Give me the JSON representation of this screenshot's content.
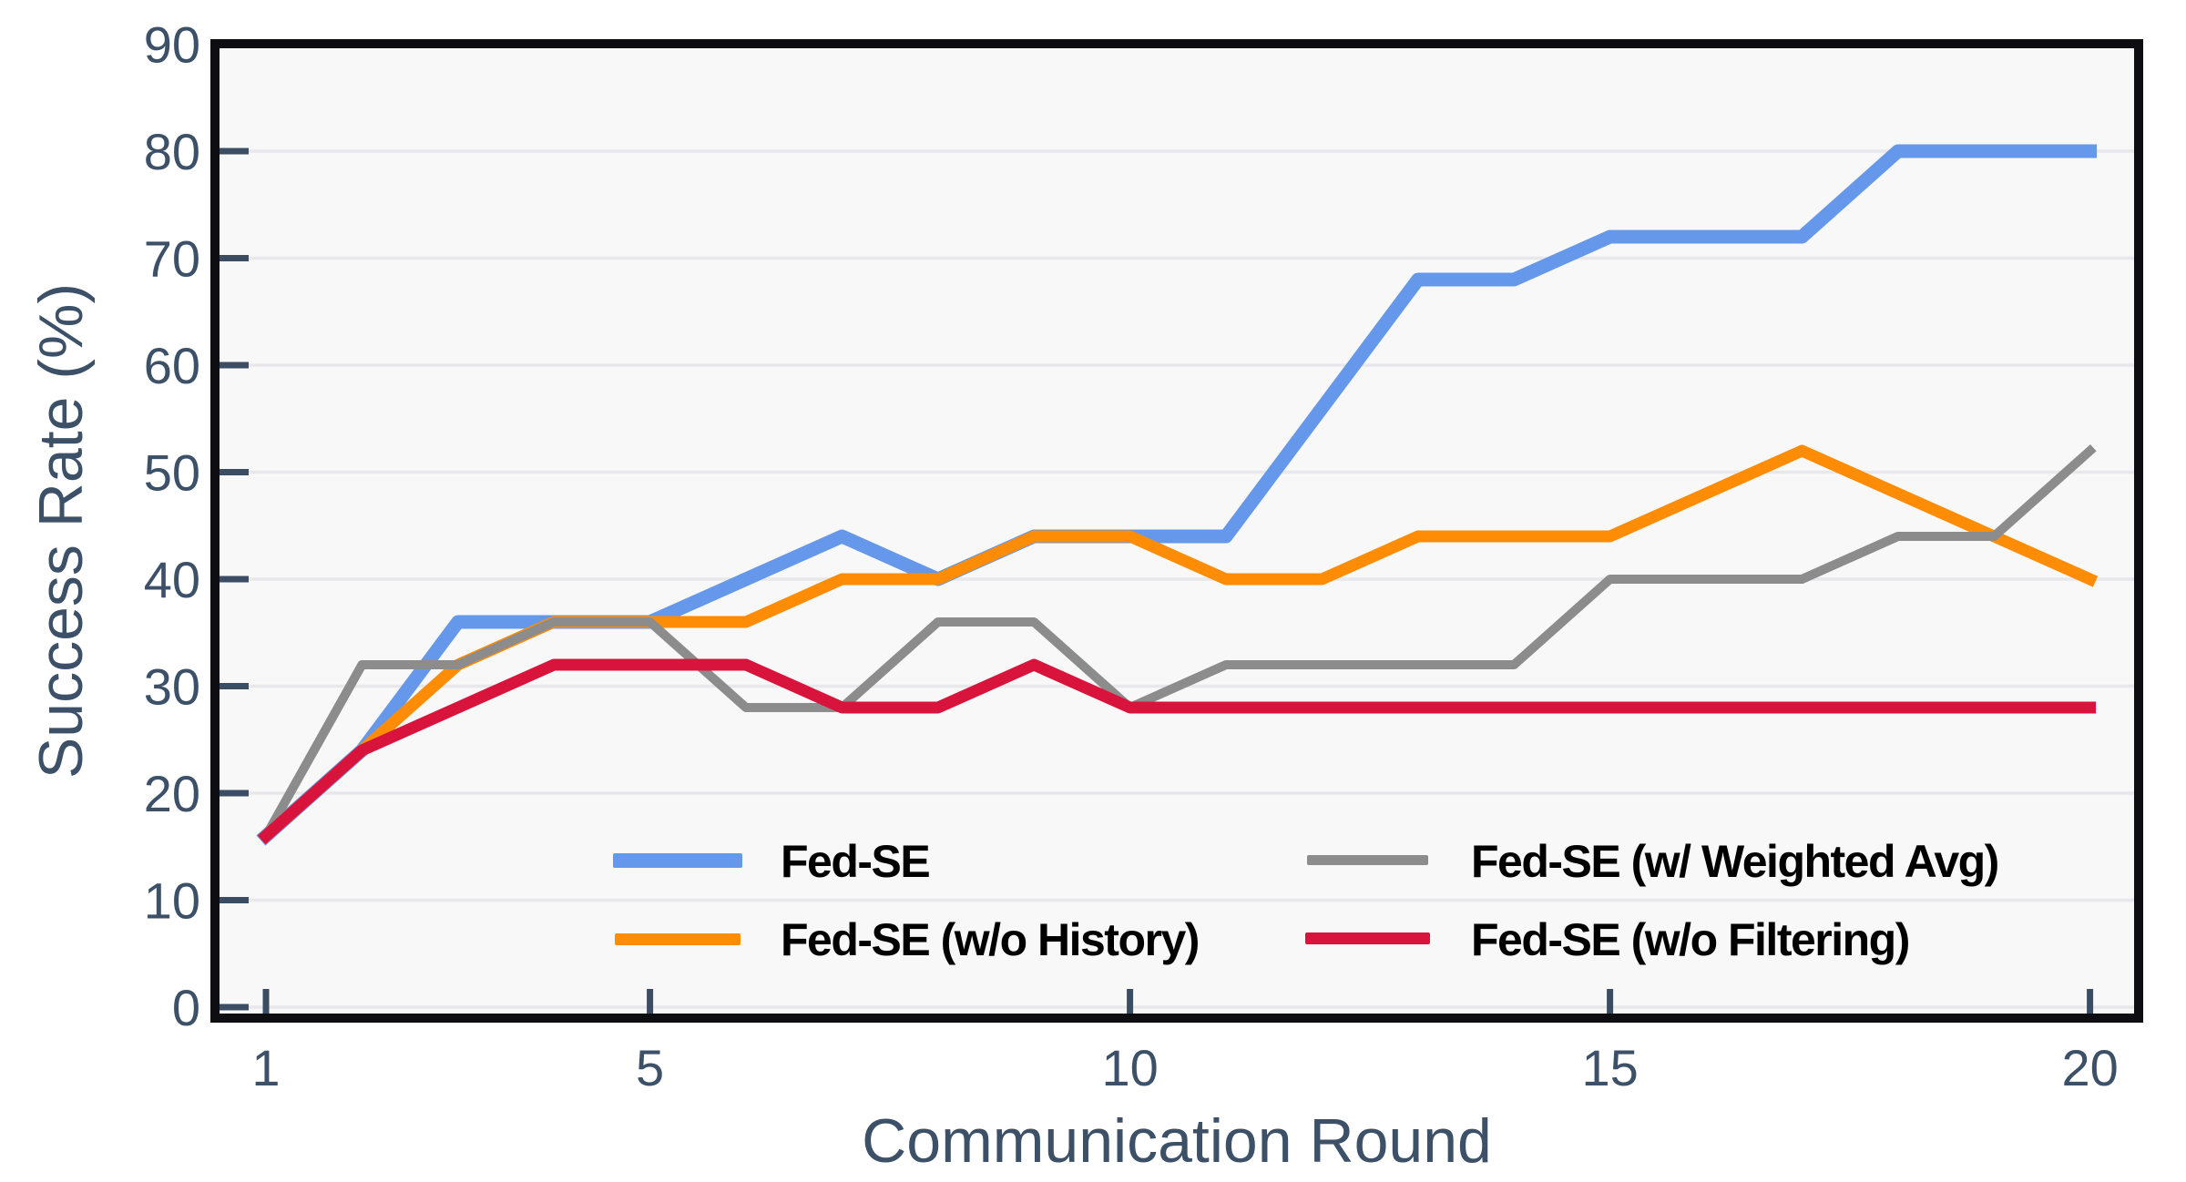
{
  "figure": {
    "background": "#ffffff",
    "plot_background": "#f8f8f9"
  },
  "colors": {
    "axis_text": "#3C5068",
    "tick_mark": "#3A4D63",
    "spine": "#0D0D12",
    "gridline": "#E8E8EA",
    "legend_text": "#000000"
  },
  "chart_data": {
    "type": "line",
    "title": "",
    "xlabel": "Communication Round",
    "ylabel": "Success Rate (%)",
    "x": [
      1,
      2,
      3,
      4,
      5,
      6,
      7,
      8,
      9,
      10,
      11,
      12,
      13,
      14,
      15,
      16,
      17,
      18,
      19,
      20
    ],
    "xlim": [
      0.47,
      20.5
    ],
    "ylim": [
      -1,
      90
    ],
    "xticks": [
      1,
      5,
      10,
      15,
      20
    ],
    "yticks": [
      0,
      10,
      20,
      30,
      40,
      50,
      60,
      70,
      80,
      90
    ],
    "gridline_values": [
      0,
      10,
      20,
      30,
      40,
      50,
      60,
      70,
      80
    ],
    "grid": "horizontal-only",
    "legend_position": "inside lower-center, 2 columns, no frame",
    "series": [
      {
        "name": "Fed-SE",
        "color": "#6598EA",
        "linewidth": 15,
        "values": [
          16,
          24,
          36,
          36,
          36,
          40,
          44,
          40,
          44,
          44,
          44,
          56,
          68,
          68,
          72,
          72,
          72,
          80,
          80,
          80
        ]
      },
      {
        "name": "Fed-SE (w/o History)",
        "color": "#FF8C05",
        "linewidth": 13,
        "values": [
          16,
          24,
          32,
          36,
          36,
          36,
          40,
          40,
          44,
          44,
          40,
          40,
          44,
          44,
          44,
          48,
          52,
          48,
          44,
          40
        ]
      },
      {
        "name": "Fed-SE (w/ Weighted Avg)",
        "color": "#8C8C8C",
        "linewidth": 10,
        "values": [
          16,
          32,
          32,
          36,
          36,
          28,
          28,
          36,
          36,
          28,
          32,
          32,
          32,
          32,
          40,
          40,
          40,
          44,
          44,
          52
        ]
      },
      {
        "name": "Fed-SE (w/o Filtering)",
        "color": "#D9143C",
        "linewidth": 13,
        "values": [
          16,
          24,
          28,
          32,
          32,
          32,
          28,
          28,
          32,
          28,
          28,
          28,
          28,
          28,
          28,
          28,
          28,
          28,
          28,
          28
        ]
      }
    ]
  }
}
